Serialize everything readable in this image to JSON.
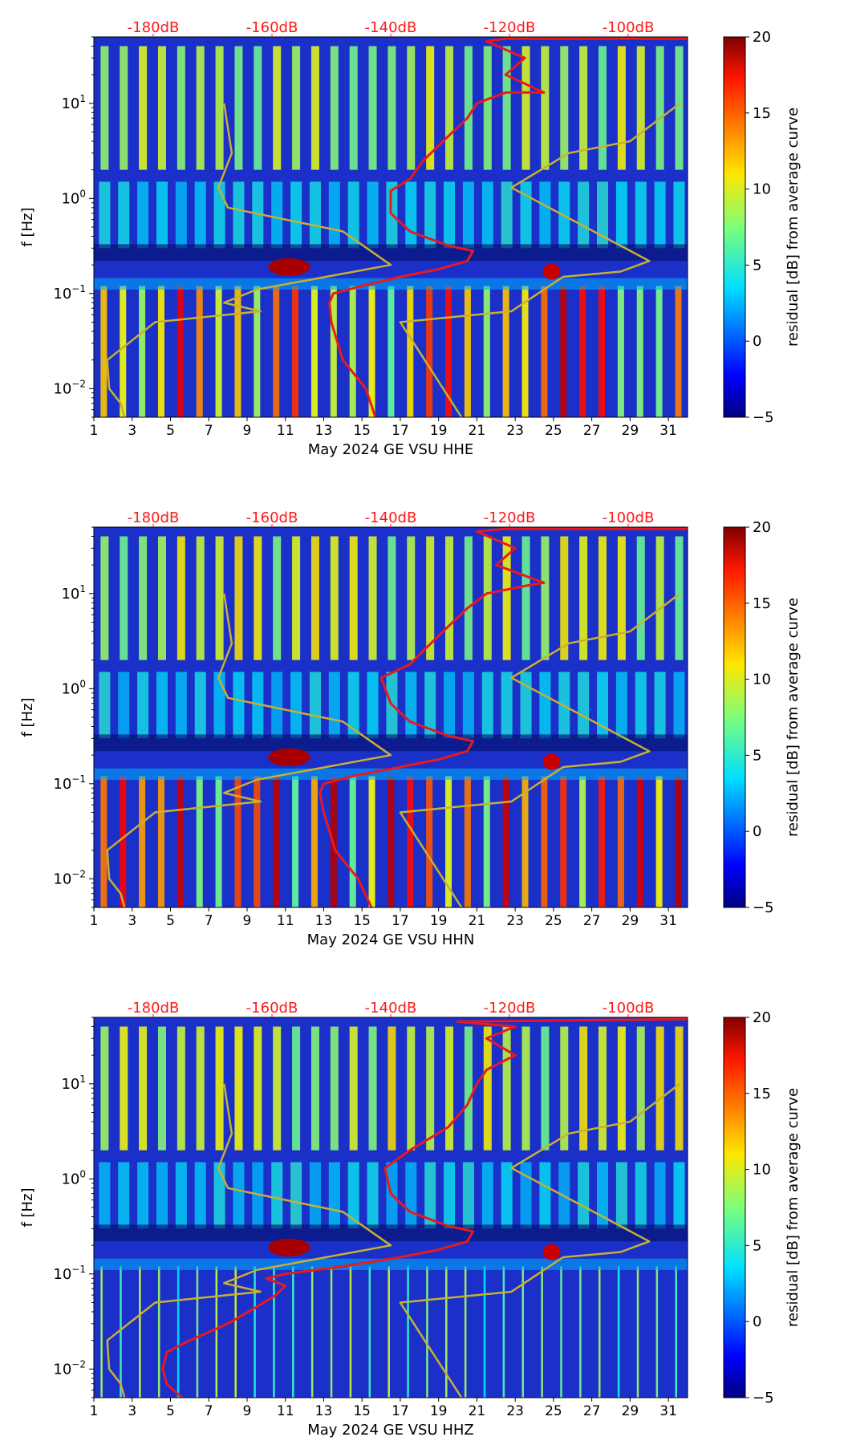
{
  "figure": {
    "colormap": "jet",
    "colors": {
      "median_curve": "#e8191e",
      "model_curves": "#c8b032",
      "top_labels": "#ff1a1a"
    }
  },
  "chart_data": [
    {
      "type": "heatmap",
      "title": "",
      "xlabel": "May 2024 GE VSU  HHE",
      "ylabel": "f [Hz]",
      "xlim": [
        1,
        32
      ],
      "ylim": [
        0.005,
        50
      ],
      "yscale": "log",
      "x_ticks": [
        "1",
        "3",
        "5",
        "7",
        "9",
        "11",
        "13",
        "15",
        "17",
        "19",
        "21",
        "23",
        "25",
        "27",
        "29",
        "31"
      ],
      "y_ticks": [
        {
          "value": 0.01,
          "base": "10",
          "exp": "−2"
        },
        {
          "value": 0.1,
          "base": "10",
          "exp": "−1"
        },
        {
          "value": 1,
          "base": "10",
          "exp": "0"
        },
        {
          "value": 10,
          "base": "10",
          "exp": "1"
        }
      ],
      "top_ticks": [
        {
          "label": "-180dB",
          "x": 4.1
        },
        {
          "label": "-160dB",
          "x": 10.3
        },
        {
          "label": "-140dB",
          "x": 16.5
        },
        {
          "label": "-120dB",
          "x": 22.7
        },
        {
          "label": "-100dB",
          "x": 28.9
        }
      ],
      "colorbar": {
        "label": "residual [dB] from average curve",
        "min": -5,
        "max": 20,
        "ticks": [
          "20",
          "15",
          "10",
          "5",
          "0",
          "−5"
        ]
      },
      "series": [
        {
          "name": "median PSD",
          "color": "#e8191e",
          "points": [
            [
              15.7,
              0.005
            ],
            [
              15.2,
              0.01
            ],
            [
              14.0,
              0.02
            ],
            [
              13.4,
              0.05
            ],
            [
              13.3,
              0.08
            ],
            [
              13.5,
              0.1
            ],
            [
              15,
              0.12
            ],
            [
              17,
              0.15
            ],
            [
              19,
              0.18
            ],
            [
              20.5,
              0.22
            ],
            [
              20.8,
              0.28
            ],
            [
              19.5,
              0.32
            ],
            [
              17.5,
              0.45
            ],
            [
              16.5,
              0.7
            ],
            [
              16.5,
              1.2
            ],
            [
              17.5,
              1.6
            ],
            [
              18.2,
              2.5
            ],
            [
              19.5,
              4.5
            ],
            [
              20.5,
              7
            ],
            [
              21,
              10
            ],
            [
              22.5,
              13
            ],
            [
              24.5,
              13
            ],
            [
              22.5,
              20
            ],
            [
              23.5,
              30
            ],
            [
              21.5,
              45
            ],
            [
              22.5,
              48
            ],
            [
              32,
              48
            ]
          ]
        },
        {
          "name": "NLNM",
          "color": "#c8b032",
          "points": [
            [
              2.6,
              0.005
            ],
            [
              2.4,
              0.007
            ],
            [
              1.8,
              0.01
            ],
            [
              1.7,
              0.02
            ],
            [
              4.2,
              0.05
            ],
            [
              9.7,
              0.065
            ],
            [
              7.8,
              0.08
            ],
            [
              9.5,
              0.11
            ],
            [
              16.5,
              0.2
            ],
            [
              14,
              0.45
            ],
            [
              8,
              0.8
            ],
            [
              7.5,
              1.3
            ],
            [
              8.2,
              3
            ],
            [
              7.8,
              10
            ]
          ]
        },
        {
          "name": "NHNM",
          "color": "#c8b032",
          "points": [
            [
              20.2,
              0.005
            ],
            [
              17.0,
              0.05
            ],
            [
              22.8,
              0.065
            ],
            [
              25.5,
              0.15
            ],
            [
              28.5,
              0.17
            ],
            [
              30,
              0.22
            ],
            [
              22.8,
              1.3
            ],
            [
              25.8,
              3
            ],
            [
              29,
              4
            ],
            [
              31.6,
              10
            ]
          ]
        }
      ]
    },
    {
      "type": "heatmap",
      "title": "",
      "xlabel": "May 2024 GE VSU  HHN",
      "ylabel": "f [Hz]",
      "xlim": [
        1,
        32
      ],
      "ylim": [
        0.005,
        50
      ],
      "yscale": "log",
      "x_ticks": [
        "1",
        "3",
        "5",
        "7",
        "9",
        "11",
        "13",
        "15",
        "17",
        "19",
        "21",
        "23",
        "25",
        "27",
        "29",
        "31"
      ],
      "y_ticks": [
        {
          "value": 0.01,
          "base": "10",
          "exp": "−2"
        },
        {
          "value": 0.1,
          "base": "10",
          "exp": "−1"
        },
        {
          "value": 1,
          "base": "10",
          "exp": "0"
        },
        {
          "value": 10,
          "base": "10",
          "exp": "1"
        }
      ],
      "top_ticks": [
        {
          "label": "-180dB",
          "x": 4.1
        },
        {
          "label": "-160dB",
          "x": 10.3
        },
        {
          "label": "-140dB",
          "x": 16.5
        },
        {
          "label": "-120dB",
          "x": 22.7
        },
        {
          "label": "-100dB",
          "x": 28.9
        }
      ],
      "colorbar": {
        "label": "residual [dB] from average curve",
        "min": -5,
        "max": 20,
        "ticks": [
          "20",
          "15",
          "10",
          "5",
          "0",
          "−5"
        ]
      },
      "series": [
        {
          "name": "median PSD",
          "color": "#e8191e",
          "points": [
            [
              15.5,
              0.005
            ],
            [
              14.8,
              0.01
            ],
            [
              13.6,
              0.02
            ],
            [
              13.0,
              0.05
            ],
            [
              12.8,
              0.08
            ],
            [
              13.0,
              0.1
            ],
            [
              14.5,
              0.12
            ],
            [
              17,
              0.15
            ],
            [
              19,
              0.18
            ],
            [
              20.5,
              0.22
            ],
            [
              20.8,
              0.28
            ],
            [
              19.5,
              0.32
            ],
            [
              17.5,
              0.45
            ],
            [
              16.5,
              0.7
            ],
            [
              16.0,
              1.3
            ],
            [
              17.5,
              1.8
            ],
            [
              18.2,
              2.5
            ],
            [
              19.5,
              4.5
            ],
            [
              20.5,
              7
            ],
            [
              21.5,
              10
            ],
            [
              23.5,
              12
            ],
            [
              24.5,
              13
            ],
            [
              22,
              20
            ],
            [
              23,
              30
            ],
            [
              21,
              45
            ],
            [
              22.5,
              48
            ],
            [
              32,
              48
            ]
          ]
        },
        {
          "name": "NLNM",
          "color": "#c8b032",
          "points": [
            [
              2.6,
              0.005
            ],
            [
              2.4,
              0.007
            ],
            [
              1.8,
              0.01
            ],
            [
              1.7,
              0.02
            ],
            [
              4.2,
              0.05
            ],
            [
              9.7,
              0.065
            ],
            [
              7.8,
              0.08
            ],
            [
              9.5,
              0.11
            ],
            [
              16.5,
              0.2
            ],
            [
              14,
              0.45
            ],
            [
              8,
              0.8
            ],
            [
              7.5,
              1.3
            ],
            [
              8.2,
              3
            ],
            [
              7.8,
              10
            ]
          ]
        },
        {
          "name": "NHNM",
          "color": "#c8b032",
          "points": [
            [
              20.2,
              0.005
            ],
            [
              17.0,
              0.05
            ],
            [
              22.8,
              0.065
            ],
            [
              25.5,
              0.15
            ],
            [
              28.5,
              0.17
            ],
            [
              30,
              0.22
            ],
            [
              22.8,
              1.3
            ],
            [
              25.8,
              3
            ],
            [
              29,
              4
            ],
            [
              31.6,
              10
            ]
          ]
        }
      ]
    },
    {
      "type": "heatmap",
      "title": "",
      "xlabel": "May 2024 GE VSU  HHZ",
      "ylabel": "f [Hz]",
      "xlim": [
        1,
        32
      ],
      "ylim": [
        0.005,
        50
      ],
      "yscale": "log",
      "x_ticks": [
        "1",
        "3",
        "5",
        "7",
        "9",
        "11",
        "13",
        "15",
        "17",
        "19",
        "21",
        "23",
        "25",
        "27",
        "29",
        "31"
      ],
      "y_ticks": [
        {
          "value": 0.01,
          "base": "10",
          "exp": "−2"
        },
        {
          "value": 0.1,
          "base": "10",
          "exp": "−1"
        },
        {
          "value": 1,
          "base": "10",
          "exp": "0"
        },
        {
          "value": 10,
          "base": "10",
          "exp": "1"
        }
      ],
      "top_ticks": [
        {
          "label": "-180dB",
          "x": 4.1
        },
        {
          "label": "-160dB",
          "x": 10.3
        },
        {
          "label": "-140dB",
          "x": 16.5
        },
        {
          "label": "-120dB",
          "x": 22.7
        },
        {
          "label": "-100dB",
          "x": 28.9
        }
      ],
      "colorbar": {
        "label": "residual [dB] from average curve",
        "min": -5,
        "max": 20,
        "ticks": [
          "20",
          "15",
          "10",
          "5",
          "0",
          "−5"
        ]
      },
      "series": [
        {
          "name": "median PSD",
          "color": "#e8191e",
          "points": [
            [
              5.6,
              0.005
            ],
            [
              4.8,
              0.007
            ],
            [
              4.6,
              0.01
            ],
            [
              4.8,
              0.015
            ],
            [
              6,
              0.02
            ],
            [
              8,
              0.03
            ],
            [
              9.5,
              0.045
            ],
            [
              10.5,
              0.06
            ],
            [
              11,
              0.075
            ],
            [
              10,
              0.09
            ],
            [
              11,
              0.1
            ],
            [
              14,
              0.12
            ],
            [
              17,
              0.15
            ],
            [
              19,
              0.18
            ],
            [
              20.5,
              0.22
            ],
            [
              20.8,
              0.28
            ],
            [
              19.5,
              0.32
            ],
            [
              17.5,
              0.45
            ],
            [
              16.5,
              0.7
            ],
            [
              16.2,
              1.3
            ],
            [
              17.5,
              2
            ],
            [
              19.5,
              3.5
            ],
            [
              20.5,
              6
            ],
            [
              21,
              10
            ],
            [
              21.5,
              14
            ],
            [
              23,
              20
            ],
            [
              21.5,
              30
            ],
            [
              23,
              40
            ],
            [
              20,
              45
            ],
            [
              32,
              48
            ]
          ]
        },
        {
          "name": "NLNM",
          "color": "#c8b032",
          "points": [
            [
              2.6,
              0.005
            ],
            [
              2.4,
              0.007
            ],
            [
              1.8,
              0.01
            ],
            [
              1.7,
              0.02
            ],
            [
              4.2,
              0.05
            ],
            [
              9.7,
              0.065
            ],
            [
              7.8,
              0.08
            ],
            [
              9.5,
              0.11
            ],
            [
              16.5,
              0.2
            ],
            [
              14,
              0.45
            ],
            [
              8,
              0.8
            ],
            [
              7.5,
              1.3
            ],
            [
              8.2,
              3
            ],
            [
              7.8,
              10
            ]
          ]
        },
        {
          "name": "NHNM",
          "color": "#c8b032",
          "points": [
            [
              20.2,
              0.005
            ],
            [
              17.0,
              0.05
            ],
            [
              22.8,
              0.065
            ],
            [
              25.5,
              0.15
            ],
            [
              28.5,
              0.17
            ],
            [
              30,
              0.22
            ],
            [
              22.8,
              1.3
            ],
            [
              25.8,
              3
            ],
            [
              29,
              4
            ],
            [
              31.6,
              10
            ]
          ]
        }
      ]
    }
  ]
}
